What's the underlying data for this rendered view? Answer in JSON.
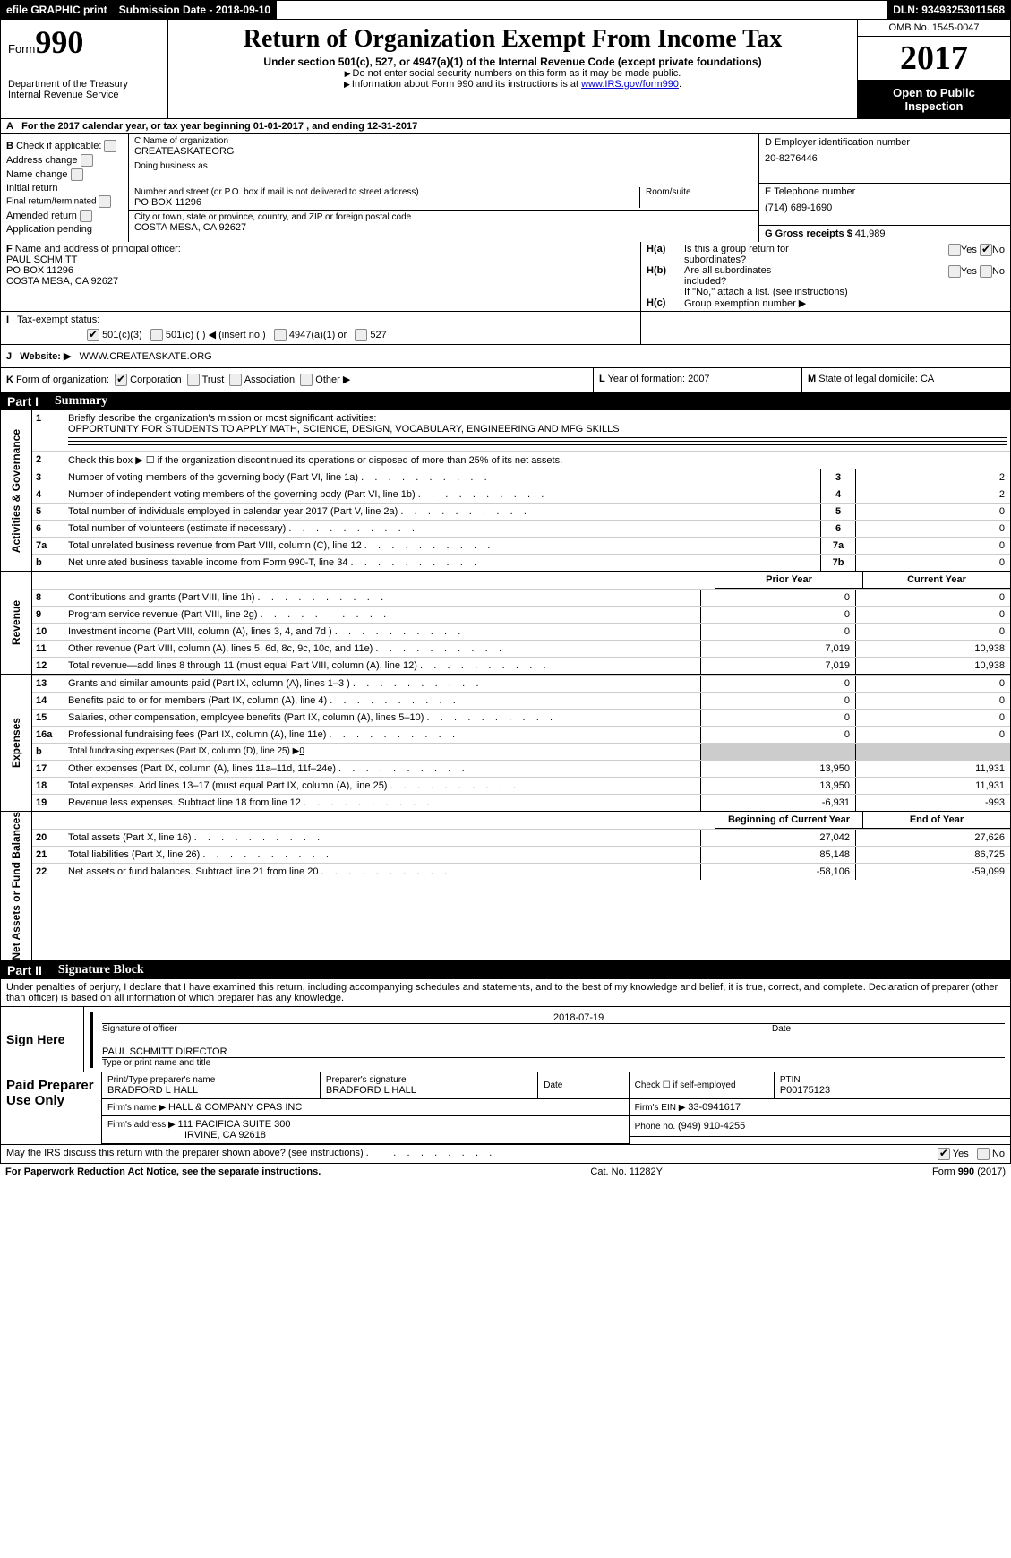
{
  "topbar": {
    "efile": "efile GRAPHIC print",
    "submission_label": "Submission Date - ",
    "submission_date": "2018-09-10",
    "dln_label": "DLN: ",
    "dln": "93493253011568"
  },
  "header": {
    "form_word": "Form",
    "form_num": "990",
    "dept1": "Department of the Treasury",
    "dept2": "Internal Revenue Service",
    "title": "Return of Organization Exempt From Income Tax",
    "sub": "Under section 501(c), 527, or 4947(a)(1) of the Internal Revenue Code (except private foundations)",
    "note1": "Do not enter social security numbers on this form as it may be made public.",
    "note2_pre": "Information about Form 990 and its instructions is at ",
    "note2_link": "www.IRS.gov/form990",
    "omb": "OMB No. 1545-0047",
    "year": "2017",
    "open1": "Open to Public",
    "open2": "Inspection"
  },
  "rowA": {
    "label": "A",
    "text_pre": "For the 2017 calendar year, or tax year beginning ",
    "begin": "01-01-2017",
    "mid": " , and ending ",
    "end": "12-31-2017"
  },
  "colB": {
    "label": "B",
    "intro": "Check if applicable:",
    "addr_change": "Address change",
    "name_change": "Name change",
    "initial": "Initial return",
    "final": "Final return/terminated",
    "amended": "Amended return",
    "pending": "Application pending"
  },
  "colC": {
    "name_label": "C Name of organization",
    "name": "CREATEASKATEORG",
    "dba_label": "Doing business as",
    "dba": "",
    "street_label": "Number and street (or P.O. box if mail is not delivered to street address)",
    "street": "PO BOX 11296",
    "room_label": "Room/suite",
    "room": "",
    "city_label": "City or town, state or province, country, and ZIP or foreign postal code",
    "city": "COSTA MESA, CA  92627"
  },
  "colD": {
    "ein_label": "D Employer identification number",
    "ein": "20-8276446",
    "phone_label": "E Telephone number",
    "phone": "(714) 689-1690",
    "gross_label": "G Gross receipts $ ",
    "gross": "41,989"
  },
  "rowF": {
    "label": "F",
    "text": "Name and address of principal officer:",
    "name": "PAUL SCHMITT",
    "addr1": "PO BOX 11296",
    "addr2": "COSTA MESA, CA  92627"
  },
  "rowH": {
    "ha_label": "H(a)",
    "ha_text1": "Is this a group return for",
    "ha_text2": "subordinates?",
    "hb_label": "H(b)",
    "hb_text1": "Are all subordinates",
    "hb_text2": "included?",
    "yes": "Yes",
    "no": "No",
    "hb_note": "If \"No,\" attach a list. (see instructions)",
    "hc_label": "H(c)",
    "hc_text": "Group exemption number ▶"
  },
  "rowI": {
    "label": "I",
    "text": "Tax-exempt status:",
    "o1": "501(c)(3)",
    "o2": "501(c) (  ) ◀ (insert no.)",
    "o3": "4947(a)(1) or",
    "o4": "527"
  },
  "rowJ": {
    "label": "J",
    "text": "Website: ▶",
    "value": "WWW.CREATEASKATE.ORG"
  },
  "rowK": {
    "label": "K",
    "text": "Form of organization:",
    "corp": "Corporation",
    "trust": "Trust",
    "assoc": "Association",
    "other": "Other ▶",
    "L_label": "L",
    "L_text": "Year of formation: ",
    "L_val": "2007",
    "M_label": "M",
    "M_text": "State of legal domicile: ",
    "M_val": "CA"
  },
  "part1": {
    "num": "Part I",
    "title": "Summary",
    "vlabel_ag": "Activities & Governance",
    "vlabel_rev": "Revenue",
    "vlabel_exp": "Expenses",
    "vlabel_na": "Net Assets or Fund Balances",
    "r1_num": "1",
    "r1_desc": "Briefly describe the organization's mission or most significant activities:",
    "r1_val": "OPPORTUNITY FOR STUDENTS TO APPLY MATH, SCIENCE, DESIGN, VOCABULARY, ENGINEERING AND MFG SKILLS",
    "r2_num": "2",
    "r2_desc": "Check this box ▶ ☐ if the organization discontinued its operations or disposed of more than 25% of its net assets.",
    "r3": {
      "num": "3",
      "desc": "Number of voting members of the governing body (Part VI, line 1a)",
      "id": "3",
      "val": "2"
    },
    "r4": {
      "num": "4",
      "desc": "Number of independent voting members of the governing body (Part VI, line 1b)",
      "id": "4",
      "val": "2"
    },
    "r5": {
      "num": "5",
      "desc": "Total number of individuals employed in calendar year 2017 (Part V, line 2a)",
      "id": "5",
      "val": "0"
    },
    "r6": {
      "num": "6",
      "desc": "Total number of volunteers (estimate if necessary)",
      "id": "6",
      "val": "0"
    },
    "r7a": {
      "num": "7a",
      "desc": "Total unrelated business revenue from Part VIII, column (C), line 12",
      "id": "7a",
      "val": "0"
    },
    "r7b": {
      "num": "b",
      "desc": "Net unrelated business taxable income from Form 990-T, line 34",
      "id": "7b",
      "val": "0"
    },
    "col_prior": "Prior Year",
    "col_current": "Current Year",
    "rev": [
      {
        "num": "8",
        "desc": "Contributions and grants (Part VIII, line 1h)",
        "v1": "0",
        "v2": "0"
      },
      {
        "num": "9",
        "desc": "Program service revenue (Part VIII, line 2g)",
        "v1": "0",
        "v2": "0"
      },
      {
        "num": "10",
        "desc": "Investment income (Part VIII, column (A), lines 3, 4, and 7d )",
        "v1": "0",
        "v2": "0"
      },
      {
        "num": "11",
        "desc": "Other revenue (Part VIII, column (A), lines 5, 6d, 8c, 9c, 10c, and 11e)",
        "v1": "7,019",
        "v2": "10,938"
      },
      {
        "num": "12",
        "desc": "Total revenue—add lines 8 through 11 (must equal Part VIII, column (A), line 12)",
        "v1": "7,019",
        "v2": "10,938"
      }
    ],
    "exp": [
      {
        "num": "13",
        "desc": "Grants and similar amounts paid (Part IX, column (A), lines 1–3 )",
        "v1": "0",
        "v2": "0"
      },
      {
        "num": "14",
        "desc": "Benefits paid to or for members (Part IX, column (A), line 4)",
        "v1": "0",
        "v2": "0"
      },
      {
        "num": "15",
        "desc": "Salaries, other compensation, employee benefits (Part IX, column (A), lines 5–10)",
        "v1": "0",
        "v2": "0"
      },
      {
        "num": "16a",
        "desc": "Professional fundraising fees (Part IX, column (A), line 11e)",
        "v1": "0",
        "v2": "0"
      }
    ],
    "r16b": {
      "num": "b",
      "desc": "Total fundraising expenses (Part IX, column (D), line 25) ▶",
      "val": "0"
    },
    "exp2": [
      {
        "num": "17",
        "desc": "Other expenses (Part IX, column (A), lines 11a–11d, 11f–24e)",
        "v1": "13,950",
        "v2": "11,931"
      },
      {
        "num": "18",
        "desc": "Total expenses. Add lines 13–17 (must equal Part IX, column (A), line 25)",
        "v1": "13,950",
        "v2": "11,931"
      },
      {
        "num": "19",
        "desc": "Revenue less expenses. Subtract line 18 from line 12",
        "v1": "-6,931",
        "v2": "-993"
      }
    ],
    "col_begin": "Beginning of Current Year",
    "col_end": "End of Year",
    "na": [
      {
        "num": "20",
        "desc": "Total assets (Part X, line 16)",
        "v1": "27,042",
        "v2": "27,626"
      },
      {
        "num": "21",
        "desc": "Total liabilities (Part X, line 26)",
        "v1": "85,148",
        "v2": "86,725"
      },
      {
        "num": "22",
        "desc": "Net assets or fund balances. Subtract line 21 from line 20",
        "v1": "-58,106",
        "v2": "-59,099"
      }
    ]
  },
  "part2": {
    "num": "Part II",
    "title": "Signature Block",
    "perjury": "Under penalties of perjury, I declare that I have examined this return, including accompanying schedules and statements, and to the best of my knowledge and belief, it is true, correct, and complete. Declaration of preparer (other than officer) is based on all information of which preparer has any knowledge.",
    "sign_here": "Sign Here",
    "sig_officer_label": "Signature of officer",
    "sig_date": "2018-07-19",
    "sig_date_label": "Date",
    "printed_name": "PAUL SCHMITT  DIRECTOR",
    "printed_label": "Type or print name and title"
  },
  "paid": {
    "header": "Paid Preparer Use Only",
    "pname_label": "Print/Type preparer's name",
    "pname": "BRADFORD L HALL",
    "psig_label": "Preparer's signature",
    "psig": "BRADFORD L HALL",
    "pdate_label": "Date",
    "pdate": "",
    "pself_label": "Check ☐ if self-employed",
    "ptin_label": "PTIN",
    "ptin": "P00175123",
    "firm_name_label": "Firm's name    ▶ ",
    "firm_name": "HALL & COMPANY CPAS INC",
    "firm_ein_label": "Firm's EIN ▶ ",
    "firm_ein": "33-0941617",
    "firm_addr_label": "Firm's address ▶ ",
    "firm_addr1": "111 PACIFICA SUITE 300",
    "firm_addr2": "IRVINE, CA  92618",
    "firm_phone_label": "Phone no. ",
    "firm_phone": "(949) 910-4255"
  },
  "discuss": {
    "text": "May the IRS discuss this return with the preparer shown above? (see instructions)",
    "yes": "Yes",
    "no": "No"
  },
  "footer": {
    "left": "For Paperwork Reduction Act Notice, see the separate instructions.",
    "center": "Cat. No. 11282Y",
    "right_pre": "Form ",
    "right_form": "990",
    "right_post": " (2017)"
  }
}
